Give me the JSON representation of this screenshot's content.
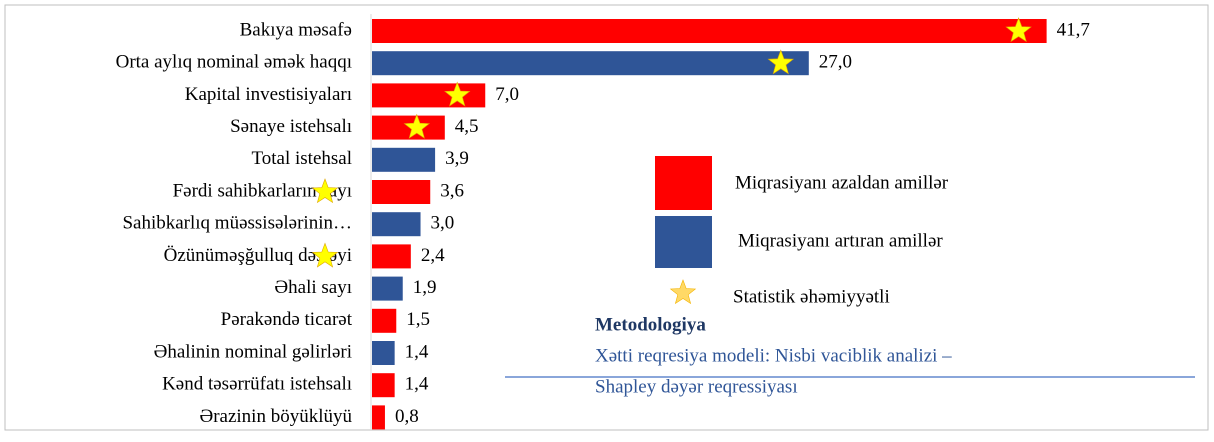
{
  "chart_data": {
    "type": "bar",
    "orientation": "horizontal",
    "categories": [
      "Bakıya məsafə",
      "Orta aylıq nominal əmək haqqı",
      "Kapital investisiyaları",
      "Sənaye istehsalı",
      "Total istehsal",
      "Fərdi sahibkarların sayı",
      "Sahibkarlıq müəssisələrinin…",
      "Özünüməşğulluq dəstəyi",
      "Əhali sayı",
      "Pərakəndə ticarət",
      "Əhalinin nominal gəlirləri",
      "Kənd təsərrüfatı istehsalı",
      "Ərazinin böyüklüyü"
    ],
    "values": [
      41.7,
      27.0,
      7.0,
      4.5,
      3.9,
      3.6,
      3.0,
      2.4,
      1.9,
      1.5,
      1.4,
      1.4,
      0.8
    ],
    "value_labels": [
      "41,7",
      "27,0",
      "7,0",
      "4,5",
      "3,9",
      "3,6",
      "3,0",
      "2,4",
      "1,9",
      "1,5",
      "1,4",
      "1,4",
      "0,8"
    ],
    "colors": [
      "#ff0000",
      "#2f5597",
      "#ff0000",
      "#ff0000",
      "#2f5597",
      "#ff0000",
      "#2f5597",
      "#ff0000",
      "#2f5597",
      "#ff0000",
      "#2f5597",
      "#ff0000",
      "#ff0000"
    ],
    "significant": [
      true,
      true,
      true,
      true,
      false,
      true,
      false,
      true,
      false,
      false,
      false,
      false,
      false
    ],
    "star_color": "#ffff00",
    "xlim": [
      0,
      45
    ],
    "legend": [
      {
        "name": "Miqrasiyanı azaldan amillər",
        "color": "#ff0000"
      },
      {
        "name": "Miqrasiyanı artıran amillər",
        "color": "#2f5597"
      },
      {
        "name": "Statistik əhəmiyyətli"
      }
    ],
    "methodology": {
      "title": "Metodologiya",
      "lines": [
        "Xətti reqresiya modeli: Nisbi vaciblik analizi –",
        "Shapley dəyər reqressiyası"
      ]
    }
  }
}
